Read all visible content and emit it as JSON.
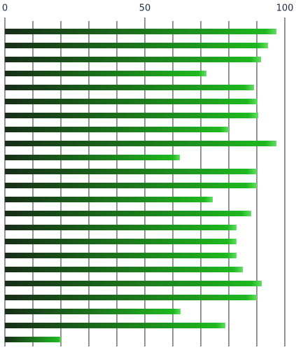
{
  "chart_data": {
    "type": "hbar",
    "categories": [
      null,
      null,
      null,
      null,
      null,
      null,
      null,
      null,
      null,
      null,
      null,
      null,
      null,
      null,
      null,
      null,
      null,
      null,
      null,
      null,
      null,
      null,
      null
    ],
    "values": [
      97,
      94,
      91.5,
      72,
      89,
      90.25,
      90.5,
      80,
      97,
      62.5,
      90,
      90,
      74.25,
      88,
      82.75,
      82.75,
      82.75,
      85,
      91.75,
      90,
      62.75,
      78.75,
      20
    ],
    "gradient": [
      "#172d17",
      "#1fb81f"
    ],
    "xlim": [
      0,
      100
    ],
    "xticks": [
      0,
      50,
      100
    ],
    "xminorticks": [
      10,
      20,
      30,
      40,
      60,
      70,
      80,
      90
    ],
    "grid": true
  }
}
